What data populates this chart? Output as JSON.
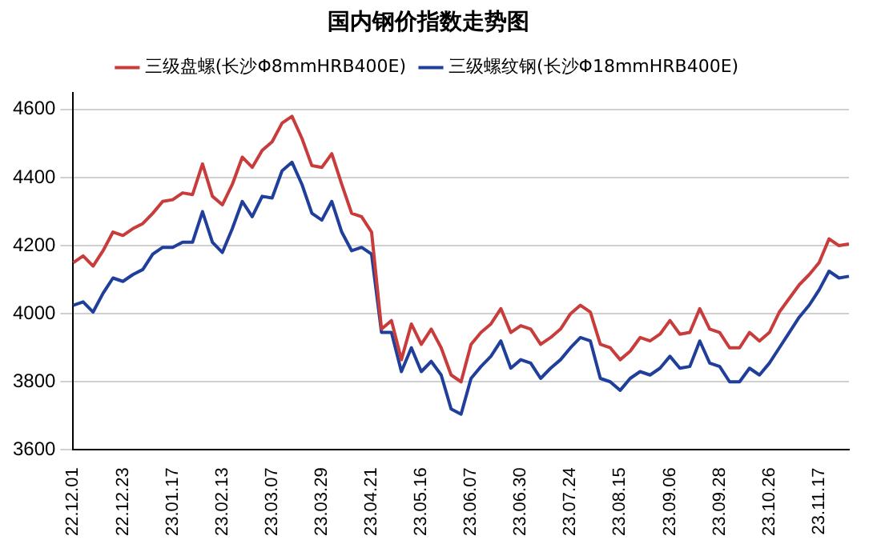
{
  "chart_data": {
    "type": "line",
    "title": "国内钢价指数走势图",
    "categories": [
      "22.12.01",
      null,
      null,
      null,
      null,
      "22.12.23",
      null,
      null,
      null,
      null,
      "23.01.17",
      null,
      null,
      null,
      null,
      "23.02.13",
      null,
      null,
      null,
      null,
      "23.03.07",
      null,
      null,
      null,
      null,
      "23.03.29",
      null,
      null,
      null,
      null,
      "23.04.21",
      null,
      null,
      null,
      null,
      "23.05.16",
      null,
      null,
      null,
      null,
      "23.06.07",
      null,
      null,
      null,
      null,
      "23.06.30",
      null,
      null,
      null,
      null,
      "23.07.24",
      null,
      null,
      null,
      null,
      "23.08.15",
      null,
      null,
      null,
      null,
      "23.09.06",
      null,
      null,
      null,
      null,
      "23.09.28",
      null,
      null,
      null,
      null,
      "23.10.26",
      null,
      null,
      null,
      null,
      "23.11.17",
      null,
      null,
      null
    ],
    "series": [
      {
        "name": "三级盘螺(长沙Φ8mmHRB400E)",
        "color": "#c83c3c",
        "values": [
          4150,
          4170,
          4140,
          4185,
          4240,
          4230,
          4250,
          4265,
          4295,
          4330,
          4335,
          4355,
          4350,
          4440,
          4345,
          4320,
          4380,
          4460,
          4430,
          4480,
          4505,
          4560,
          4580,
          4515,
          4435,
          4430,
          4470,
          4380,
          4295,
          4285,
          4240,
          3955,
          3980,
          3865,
          3970,
          3910,
          3955,
          3900,
          3820,
          3800,
          3910,
          3945,
          3970,
          4015,
          3945,
          3965,
          3955,
          3910,
          3930,
          3955,
          4000,
          4025,
          4005,
          3910,
          3900,
          3865,
          3890,
          3930,
          3920,
          3940,
          3980,
          3940,
          3945,
          4015,
          3955,
          3945,
          3900,
          3900,
          3945,
          3920,
          3945,
          4005,
          4045,
          4085,
          4115,
          4150,
          4220,
          4200,
          4205
        ]
      },
      {
        "name": "三级螺纹钢(长沙Φ18mmHRB400E)",
        "color": "#1f3f9a",
        "values": [
          4025,
          4035,
          4005,
          4060,
          4105,
          4095,
          4115,
          4130,
          4175,
          4195,
          4195,
          4210,
          4210,
          4300,
          4210,
          4180,
          4250,
          4330,
          4285,
          4345,
          4340,
          4420,
          4445,
          4380,
          4295,
          4275,
          4330,
          4240,
          4185,
          4195,
          4175,
          3945,
          3945,
          3830,
          3900,
          3830,
          3860,
          3820,
          3720,
          3705,
          3810,
          3845,
          3875,
          3920,
          3840,
          3865,
          3855,
          3810,
          3840,
          3865,
          3900,
          3930,
          3920,
          3810,
          3800,
          3775,
          3810,
          3830,
          3820,
          3840,
          3875,
          3840,
          3845,
          3920,
          3855,
          3845,
          3800,
          3800,
          3840,
          3820,
          3855,
          3900,
          3945,
          3990,
          4025,
          4070,
          4125,
          4105,
          4110
        ]
      }
    ],
    "ylim": [
      3600,
      4650
    ],
    "yticks": [
      3600,
      3800,
      4000,
      4200,
      4400,
      4600
    ],
    "grid": "y",
    "legend": "top",
    "marker": "none",
    "line_style": "solid"
  }
}
